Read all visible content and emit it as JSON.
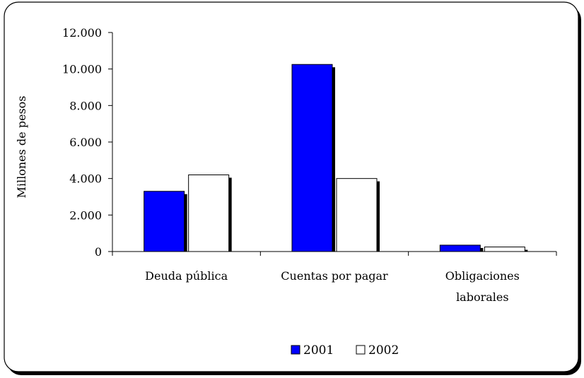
{
  "chart_data": {
    "type": "bar",
    "categories": [
      [
        "Deuda pública"
      ],
      [
        "Cuentas por pagar"
      ],
      [
        "Obligaciones",
        "laborales"
      ]
    ],
    "series": [
      {
        "name": "2001",
        "values": [
          3300,
          10250,
          350
        ],
        "color": "#0000ff"
      },
      {
        "name": "2002",
        "values": [
          4200,
          4000,
          250
        ],
        "color": "#ffffff"
      }
    ],
    "ylabel": "Millones de pesos",
    "ylim": [
      0,
      12000
    ],
    "yticks": [
      0,
      2000,
      4000,
      6000,
      8000,
      10000,
      12000
    ],
    "ytick_labels": [
      "0",
      "2.000",
      "4.000",
      "6.000",
      "8.000",
      "10.000",
      "12.000"
    ],
    "grid": false,
    "legend_position": "bottom-center"
  }
}
